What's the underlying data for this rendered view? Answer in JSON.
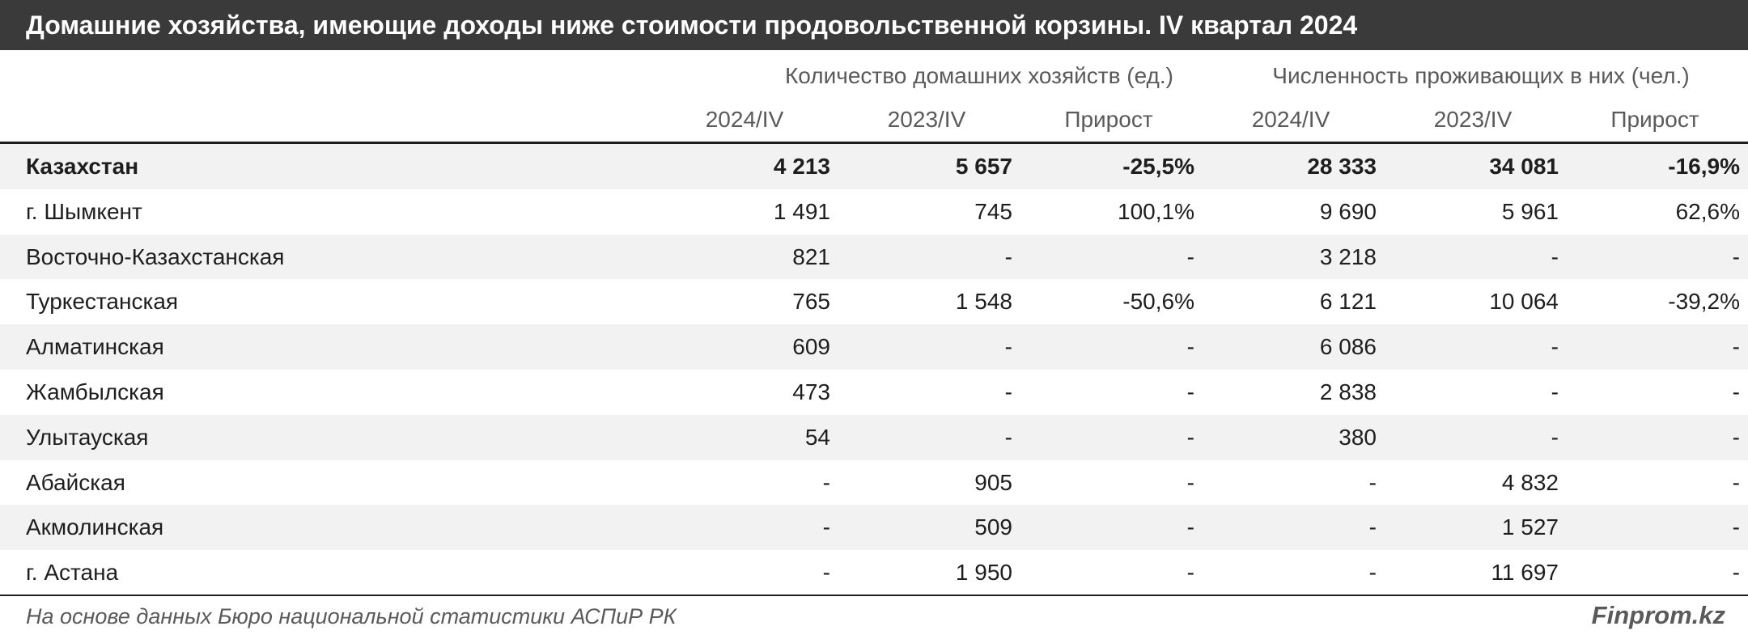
{
  "title": "Домашние хозяйства, имеющие доходы ниже стоимости продовольственной корзины. IV квартал 2024",
  "groups": [
    "Количество домашних хозяйств (ед.)",
    "Численность проживающих в них (чел.)"
  ],
  "columns": [
    "2024/IV",
    "2023/IV",
    "Прирост",
    "2024/IV",
    "2023/IV",
    "Прирост"
  ],
  "rows": [
    {
      "name": "Казахстан",
      "values": [
        "4 213",
        "5 657",
        "-25,5%",
        "28 333",
        "34 081",
        "-16,9%"
      ]
    },
    {
      "name": "г. Шымкент",
      "values": [
        "1 491",
        "745",
        "100,1%",
        "9 690",
        "5 961",
        "62,6%"
      ]
    },
    {
      "name": "Восточно-Казахстанская",
      "values": [
        "821",
        "-",
        "-",
        "3 218",
        "-",
        "-"
      ]
    },
    {
      "name": "Туркестанская",
      "values": [
        "765",
        "1 548",
        "-50,6%",
        "6 121",
        "10 064",
        "-39,2%"
      ]
    },
    {
      "name": "Алматинская",
      "values": [
        "609",
        "-",
        "-",
        "6 086",
        "-",
        "-"
      ]
    },
    {
      "name": "Жамбылская",
      "values": [
        "473",
        "-",
        "-",
        "2 838",
        "-",
        "-"
      ]
    },
    {
      "name": "Улытауская",
      "values": [
        "54",
        "-",
        "-",
        "380",
        "-",
        "-"
      ]
    },
    {
      "name": "Абайская",
      "values": [
        "-",
        "905",
        "-",
        "-",
        "4 832",
        "-"
      ]
    },
    {
      "name": "Акмолинская",
      "values": [
        "-",
        "509",
        "-",
        "-",
        "1 527",
        "-"
      ]
    },
    {
      "name": "г. Астана",
      "values": [
        "-",
        "1 950",
        "-",
        "-",
        "11 697",
        "-"
      ]
    }
  ],
  "footer": {
    "source": "На основе данных Бюро национальной статистики АСПиР РК",
    "brand": "Finprom.kz"
  }
}
